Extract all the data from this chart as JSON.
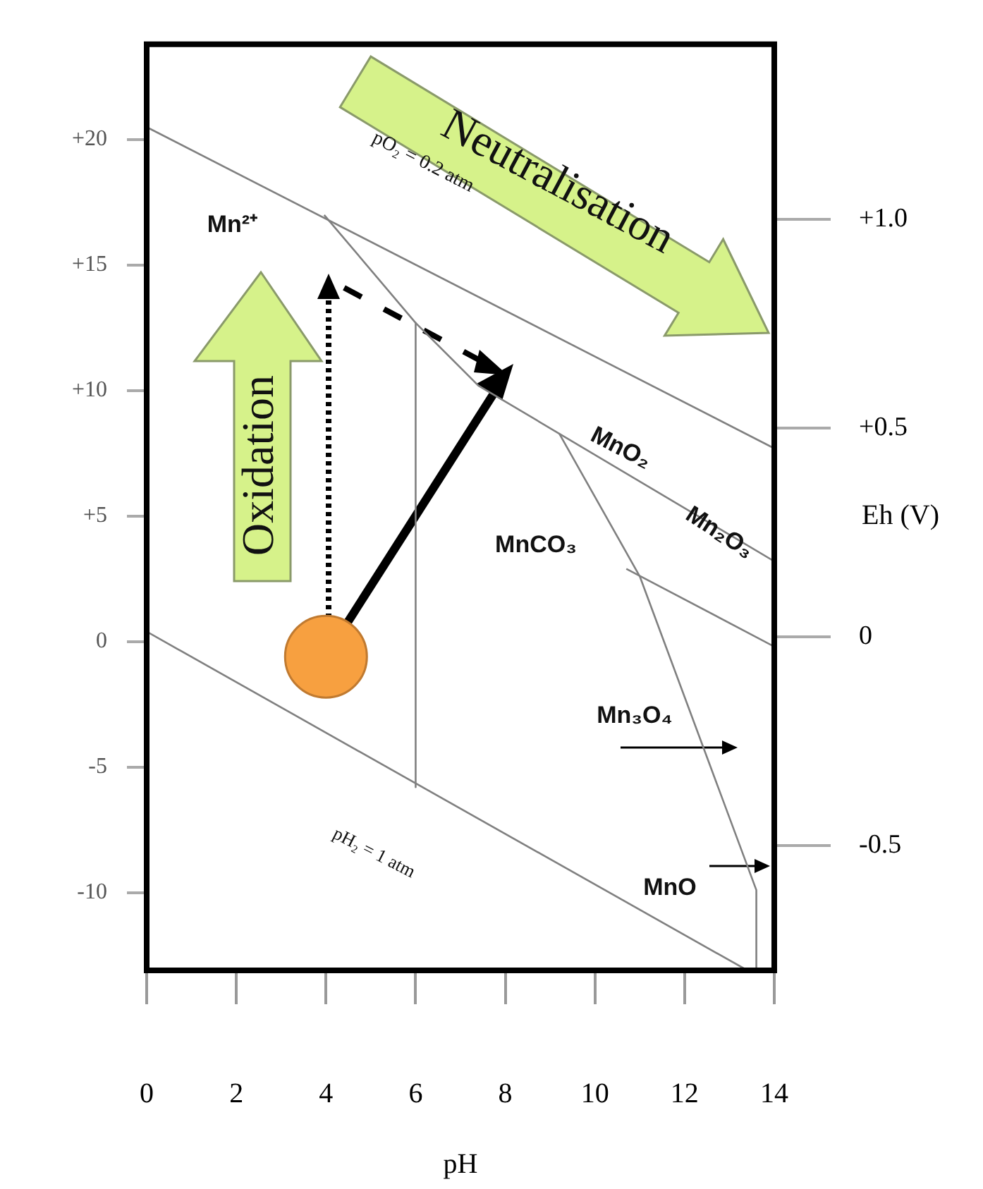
{
  "chart_data": {
    "type": "line",
    "xlabel": "pH",
    "y2label": "Eh (V)",
    "xlim": [
      0,
      14
    ],
    "xticks": [
      0,
      2,
      4,
      6,
      8,
      10,
      12,
      14
    ],
    "ylim": [
      -13.1,
      23.8
    ],
    "yticks": [
      {
        "value": 20,
        "label": "+20"
      },
      {
        "value": 15,
        "label": "+15"
      },
      {
        "value": 10,
        "label": "+10"
      },
      {
        "value": 5,
        "label": "+5"
      },
      0,
      -5,
      -10
    ],
    "y2lim": [
      -0.8,
      1.42
    ],
    "y2ticks": [
      {
        "value": 1,
        "label": "+1.0"
      },
      {
        "value": 0.5,
        "label": "+0.5"
      },
      0,
      -0.5
    ],
    "series": [
      {
        "color": "#808080",
        "x": [
          0,
          14
        ],
        "values": [
          20.5,
          7.7
        ]
      },
      {
        "color": "#808080",
        "x": [
          0,
          13.4
        ],
        "values": [
          0.4,
          -13.1
        ]
      },
      {
        "color": "#808080",
        "x": [
          3.96,
          6.0,
          7.4,
          14
        ],
        "values": [
          17,
          12.7,
          10.2,
          3.2
        ]
      },
      {
        "color": "#808080",
        "x": [
          6.0,
          6.0
        ],
        "values": [
          12.7,
          -5.8
        ]
      },
      {
        "color": "#808080",
        "x": [
          9.2,
          11.0,
          13.6,
          13.6
        ],
        "values": [
          8.3,
          2.6,
          -9.9,
          -13.1
        ]
      },
      {
        "color": "#808080",
        "x": [
          10.7,
          14
        ],
        "values": [
          2.9,
          -0.2
        ]
      },
      {
        "type": "scatter",
        "color": "#f7a040",
        "marker": "circle",
        "x": [
          4.0
        ],
        "values": [
          -0.6
        ]
      }
    ],
    "annotations": [
      "Mn²⁺",
      "pO₂ = 0.2 atm",
      "MnO₂",
      "Mn₂O₃",
      "MnCO₃",
      "Mn₃O₄",
      "MnO",
      "pH₂ = 1 atm",
      "Oxidation",
      "Neutralisation"
    ]
  }
}
